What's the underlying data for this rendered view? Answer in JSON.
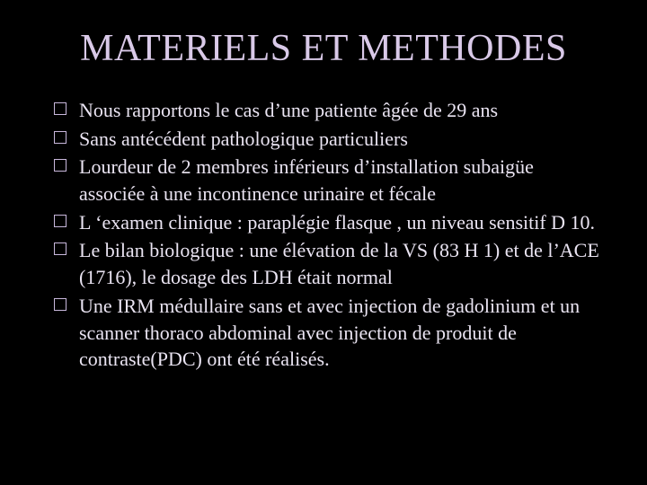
{
  "slide": {
    "background_color": "#000000",
    "title": {
      "text": "MATERIELS ET METHODES",
      "color": "#d9c9e8",
      "fontsize_pt": 42,
      "align": "center"
    },
    "body": {
      "text_color": "#eae4f2",
      "fontsize_pt": 22,
      "bullet_style": "hollow-square",
      "bullet_color": "#c9b8dc",
      "items": [
        "Nous rapportons le cas d’une patiente âgée de 29 ans",
        "Sans antécédent pathologique particuliers",
        "Lourdeur  de 2 membres inférieurs d’installation subaigüe  associée à une incontinence urinaire et fécale",
        "L ‘examen clinique : paraplégie flasque , un niveau sensitif D 10.",
        "Le bilan biologique :  une élévation de la VS (83 H 1) et de l’ACE (1716), le dosage des LDH était normal",
        "Une IRM médullaire sans et avec injection de gadolinium  et un scanner thoraco abdominal avec injection  de produit de contraste(PDC) ont été réalisés."
      ]
    }
  }
}
